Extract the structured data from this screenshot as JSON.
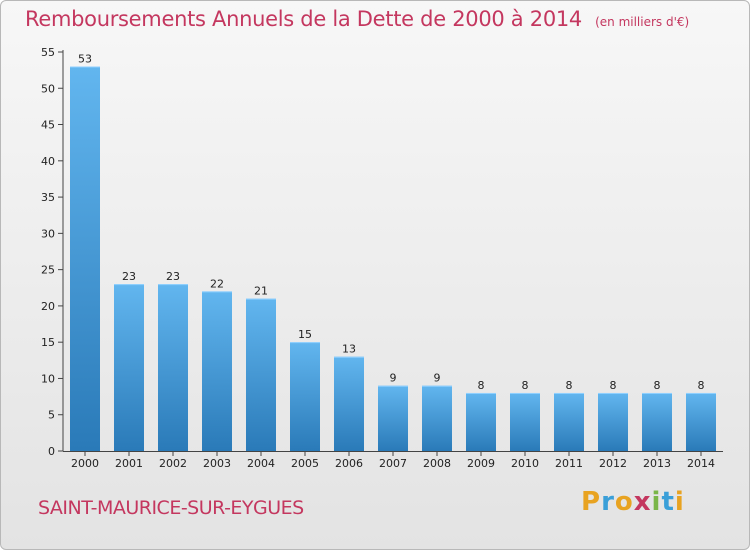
{
  "title": {
    "main": "Remboursements Annuels de la Dette de 2000 à 2014",
    "unit": "(en milliers d'€)"
  },
  "commune": "SAINT-MAURICE-SUR-EYGUES",
  "logo": {
    "text": "Proxiti",
    "letter_colors": [
      "#e8a321",
      "#3a9fd8",
      "#e8a321",
      "#c4375f",
      "#7ab648",
      "#3a9fd8",
      "#e8a321"
    ]
  },
  "colors": {
    "accent": "#c4375f",
    "bar_top": "#62b6ef",
    "bar_bottom": "#2a7ab8"
  },
  "chart_data": {
    "type": "bar",
    "title": "Remboursements Annuels de la Dette de 2000 à 2014",
    "categories": [
      "2000",
      "2001",
      "2002",
      "2003",
      "2004",
      "2005",
      "2006",
      "2007",
      "2008",
      "2009",
      "2010",
      "2011",
      "2012",
      "2013",
      "2014"
    ],
    "values": [
      53,
      23,
      23,
      22,
      21,
      15,
      13,
      9,
      9,
      8,
      8,
      8,
      8,
      8,
      8
    ],
    "ylim": [
      0,
      55
    ],
    "yticks": [
      0,
      5,
      10,
      15,
      20,
      25,
      30,
      35,
      40,
      45,
      50,
      55
    ],
    "xlabel": "",
    "ylabel": "",
    "grid": false,
    "data_labels": true
  }
}
